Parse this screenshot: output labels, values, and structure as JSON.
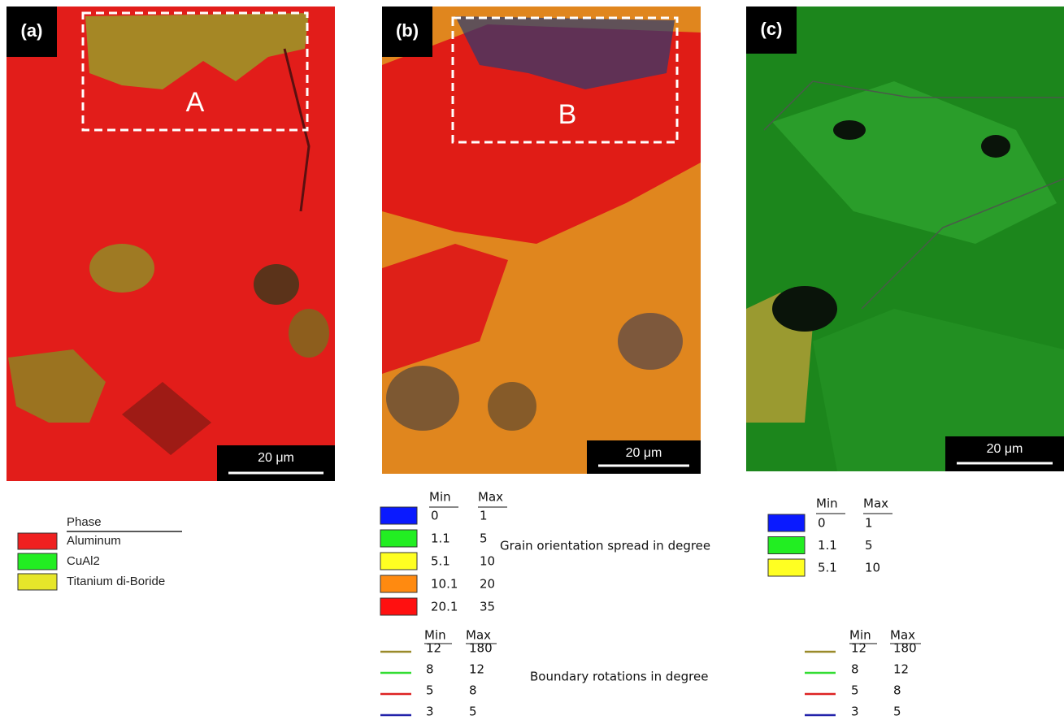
{
  "panels": [
    {
      "label": "(a)",
      "region": "A",
      "scale_bar": "20 μm"
    },
    {
      "label": "(b)",
      "region": "B",
      "scale_bar": "20 μm"
    },
    {
      "label": "(c)",
      "scale_bar": "20 μm"
    }
  ],
  "phase_legend": {
    "title": "Phase",
    "items": [
      {
        "label": "Aluminum",
        "color": "#ef2020"
      },
      {
        "label": "CuAl2",
        "color": "#22ee22"
      },
      {
        "label": "Titanium di-Boride",
        "color": "#e6e62a"
      }
    ]
  },
  "gos_legend_b": {
    "title": "Grain orientation spread in degree",
    "min_header": "Min",
    "max_header": "Max",
    "rows": [
      {
        "min": "0",
        "max": "1",
        "color": "#0a1aff"
      },
      {
        "min": "1.1",
        "max": "5",
        "color": "#22ee22"
      },
      {
        "min": "5.1",
        "max": "10",
        "color": "#ffff22"
      },
      {
        "min": "10.1",
        "max": "20",
        "color": "#ff8a10"
      },
      {
        "min": "20.1",
        "max": "35",
        "color": "#ff1010"
      }
    ]
  },
  "gos_legend_c": {
    "min_header": "Min",
    "max_header": "Max",
    "rows": [
      {
        "min": "0",
        "max": "1",
        "color": "#0a1aff"
      },
      {
        "min": "1.1",
        "max": "5",
        "color": "#22ee22"
      },
      {
        "min": "5.1",
        "max": "10",
        "color": "#ffff22"
      }
    ]
  },
  "boundary_legend_b": {
    "title": "Boundary rotations in degree",
    "min_header": "Min",
    "max_header": "Max",
    "rows": [
      {
        "min": "12",
        "max": "180",
        "color": "#9a8a2a"
      },
      {
        "min": "8",
        "max": "12",
        "color": "#33dd33"
      },
      {
        "min": "5",
        "max": "8",
        "color": "#dd2222"
      },
      {
        "min": "3",
        "max": "5",
        "color": "#2222aa"
      }
    ]
  },
  "boundary_legend_c": {
    "min_header": "Min",
    "max_header": "Max",
    "rows": [
      {
        "min": "12",
        "max": "180",
        "color": "#9a8a2a"
      },
      {
        "min": "8",
        "max": "12",
        "color": "#33dd33"
      },
      {
        "min": "5",
        "max": "8",
        "color": "#dd2222"
      },
      {
        "min": "3",
        "max": "5",
        "color": "#2222aa"
      }
    ]
  }
}
